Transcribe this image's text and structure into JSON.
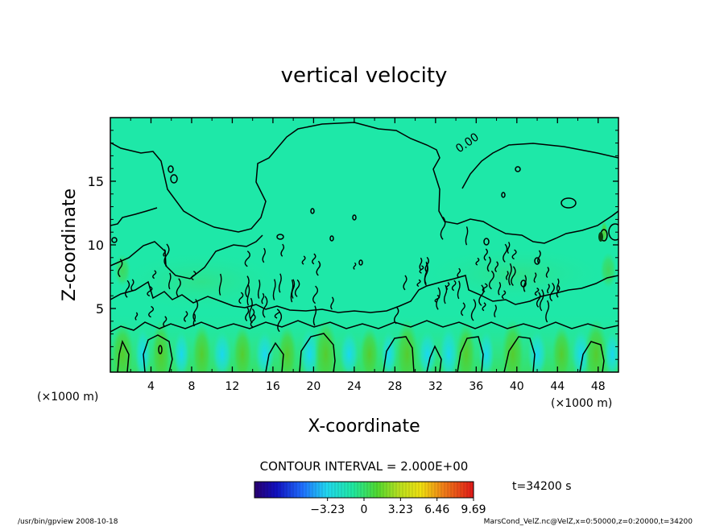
{
  "chart_data": {
    "type": "heatmap",
    "title": "vertical velocity",
    "xlabel": "X-coordinate",
    "ylabel": "Z-coordinate",
    "x_unit": "(×1000 m)",
    "z_unit": "(×1000 m)",
    "xlim": [
      0,
      50
    ],
    "ylim": [
      0,
      20
    ],
    "x_ticks": [
      4,
      8,
      12,
      16,
      20,
      24,
      28,
      32,
      36,
      40,
      44,
      48
    ],
    "y_ticks": [
      5,
      10,
      15
    ],
    "contour_label": "0.00",
    "contour_interval_text": "CONTOUR INTERVAL = 2.000E+00",
    "time_text": "t=34200 s",
    "colorbar": {
      "min": -9.69,
      "max": 9.69,
      "tick_values": [
        -3.23,
        0,
        3.23,
        6.46,
        9.69
      ],
      "tick_labels": [
        "−3.23",
        "0",
        "3.23",
        "6.46",
        "9.69"
      ]
    },
    "footer_left": "/usr/bin/gpview   2008-10-18",
    "footer_right": "MarsCond_VelZ.nc@VelZ,x=0:50000,z=0:20000,t=34200",
    "colors": {
      "background_field": "#1ee8a8",
      "low_band_field": "#32e070",
      "updraft": "#4ed23a",
      "downdraft": "#24e2e6"
    }
  }
}
